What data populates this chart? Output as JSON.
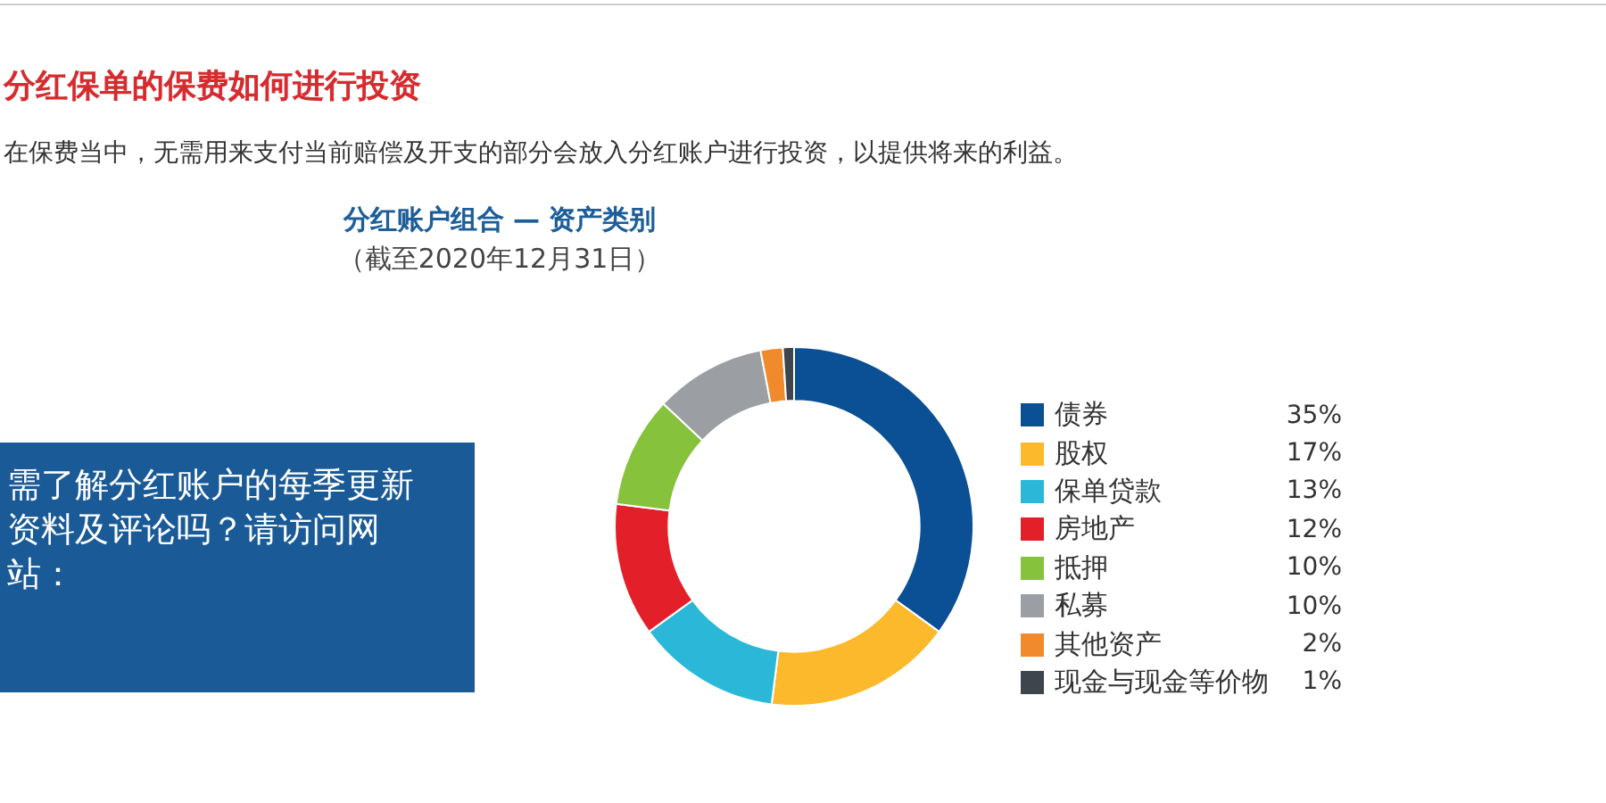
{
  "chart_data": {
    "type": "donut",
    "title": "分红账户组合 — 资产类别",
    "subtitle": "（截至2020年12月31日）",
    "annotations": [
      "分红保单的保费如何进行投资",
      "在保费当中，无需用来支付当前赔偿及开支的部分会放入分红账户进行投资，以提供将来的利益。",
      "需了解分红账户的每季更新资料及评论吗？请访问网站："
    ],
    "categories": [
      "债券",
      "股权",
      "保单贷款",
      "房地产",
      "抵押",
      "私募",
      "其他资产",
      "现金与现金等价物"
    ],
    "values": [
      35,
      17,
      13,
      12,
      10,
      10,
      2,
      1
    ],
    "value_labels": [
      "35%",
      "17%",
      "13%",
      "12%",
      "10%",
      "10%",
      "2%",
      "1%"
    ],
    "colors": [
      "#0b4f94",
      "#fbb92b",
      "#2bb8d8",
      "#e3202a",
      "#86c23c",
      "#9b9ea3",
      "#f08a2c",
      "#3f454d"
    ],
    "legend": "right"
  }
}
